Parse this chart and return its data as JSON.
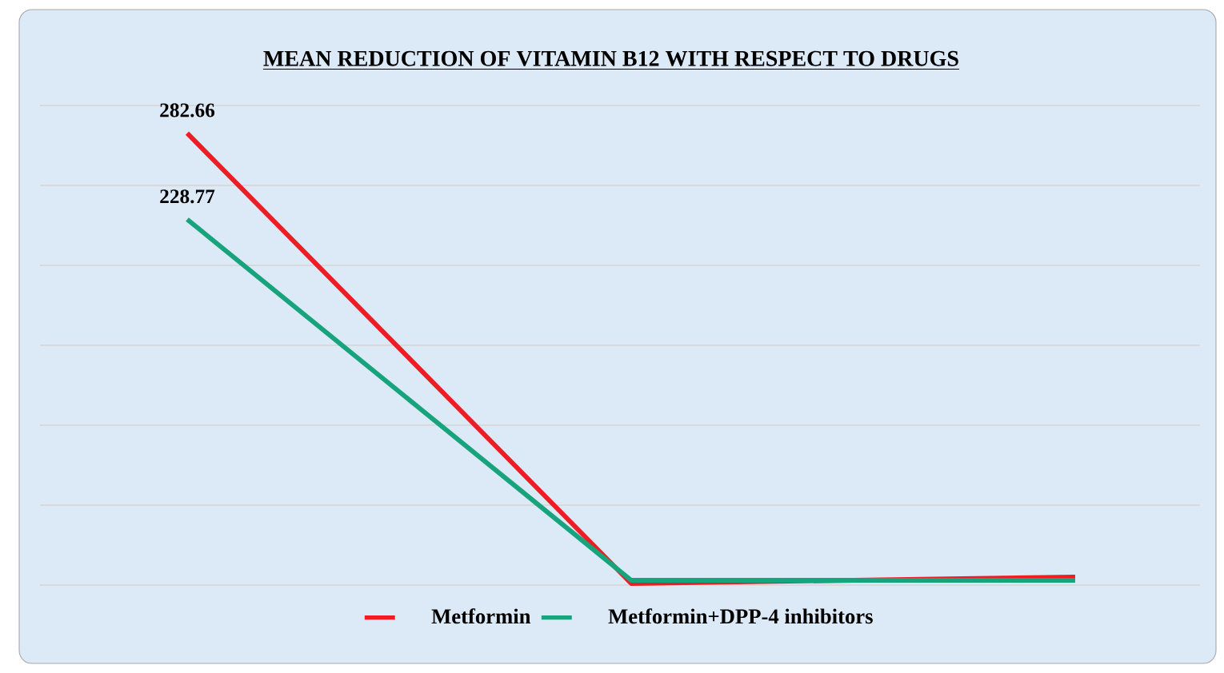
{
  "chart_data": {
    "type": "line",
    "title": "MEAN REDUCTION OF VITAMIN B12 WITH RESPECT TO DRUGS",
    "categories": [
      null,
      null,
      null
    ],
    "series": [
      {
        "name": "Metformin",
        "color": "#ee1c24",
        "values": [
          282.66,
          1,
          5
        ],
        "value_labels": [
          "282.66",
          null,
          null
        ]
      },
      {
        "name": "Metformin+DPP-4 inhibitors",
        "color": "#17a37c",
        "values": [
          228.77,
          3,
          3
        ],
        "value_labels": [
          "228.77",
          null,
          null
        ]
      }
    ],
    "ylim": [
      0,
      300
    ],
    "yticks": [
      {
        "value": 0,
        "label": null
      },
      {
        "value": 50,
        "label": null
      },
      {
        "value": 100,
        "label": null
      },
      {
        "value": 150,
        "label": null
      },
      {
        "value": 200,
        "label": null
      },
      {
        "value": 250,
        "label": null
      },
      {
        "value": 300,
        "label": null
      }
    ],
    "grid": "y",
    "legend": "bottom",
    "marker": "none",
    "line_style": "solid"
  }
}
